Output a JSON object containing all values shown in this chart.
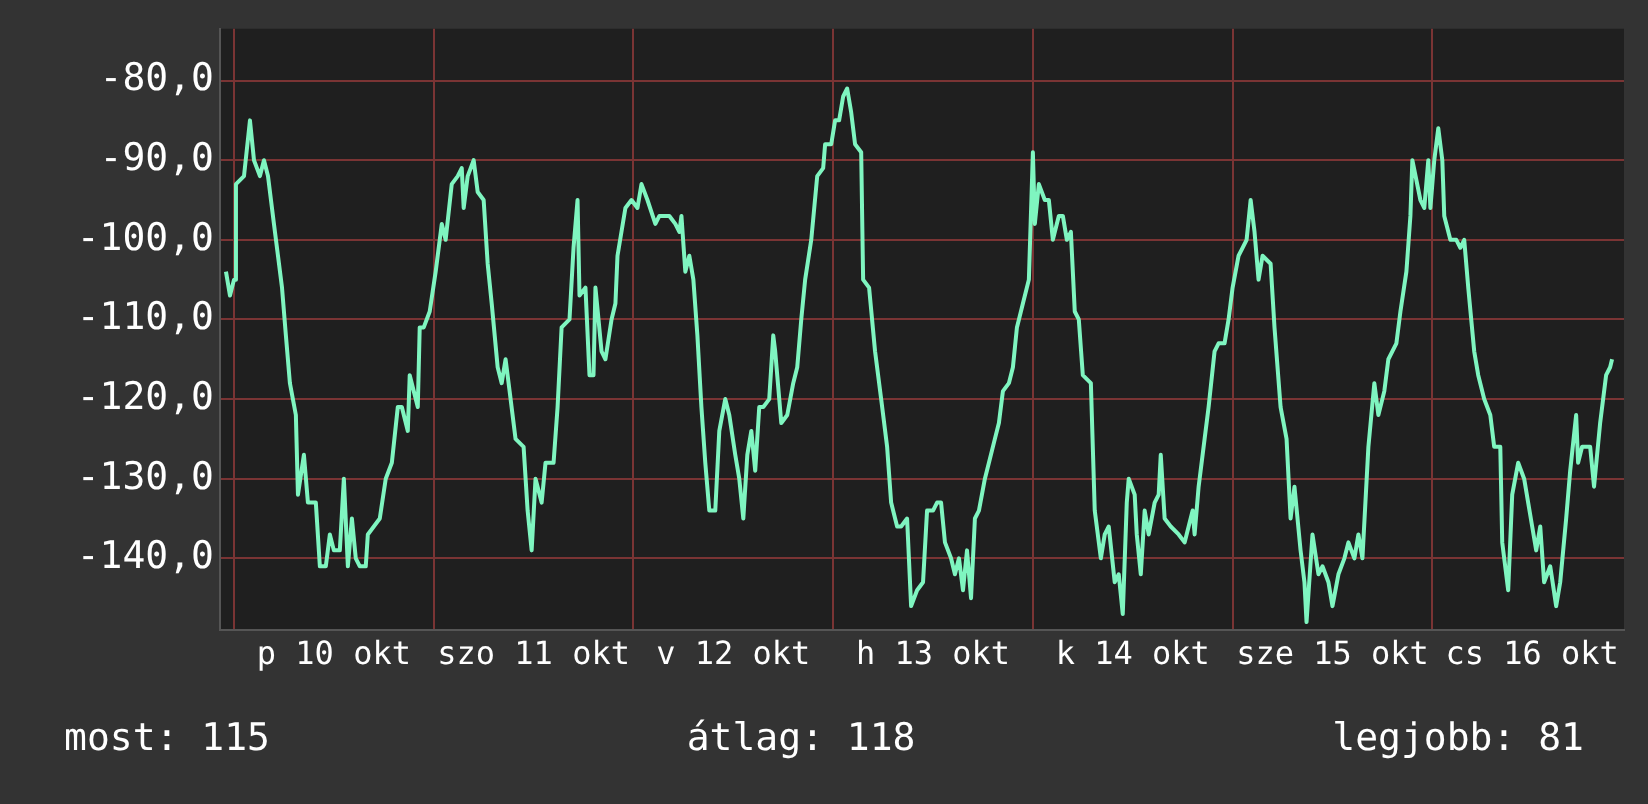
{
  "chart_data": {
    "type": "line",
    "x": [
      "--10-09T23:02",
      "--10-09T23:31",
      "--10-10T00:00",
      "--10-10T00:14",
      "--10-10T01:12",
      "--10-10T01:55",
      "--10-10T02:24",
      "--10-10T03:07",
      "--10-10T03:36",
      "--10-10T04:05",
      "--10-10T04:48",
      "--10-10T05:46",
      "--10-10T06:14",
      "--10-10T06:43",
      "--10-10T07:26",
      "--10-10T07:41",
      "--10-10T08:24",
      "--10-10T08:53",
      "--10-10T09:50",
      "--10-10T10:19",
      "--10-10T11:02",
      "--10-10T11:31",
      "--10-10T12:00",
      "--10-10T12:43",
      "--10-10T13:12",
      "--10-10T13:41",
      "--10-10T14:10",
      "--10-10T14:38",
      "--10-10T15:07",
      "--10-10T15:50",
      "--10-10T16:05",
      "--10-10T16:48",
      "--10-10T17:31",
      "--10-10T18:14",
      "--10-10T18:58",
      "--10-10T19:41",
      "--10-10T20:10",
      "--10-10T20:53",
      "--10-10T21:07",
      "--10-10T22:05",
      "--10-10T22:19",
      "--10-10T22:48",
      "--10-10T23:31",
      "--10-11T00:14",
      "--10-11T00:58",
      "--10-11T01:26",
      "--10-11T02:10",
      "--10-11T02:53",
      "--10-11T03:22",
      "--10-11T03:36",
      "--10-11T04:05",
      "--10-11T04:48",
      "--10-11T05:17",
      "--10-11T06:00",
      "--10-11T06:29",
      "--10-11T06:58",
      "--10-11T07:41",
      "--10-11T08:10",
      "--10-11T08:38",
      "--10-11T09:07",
      "--10-11T09:50",
      "--10-11T10:48",
      "--10-11T11:17",
      "--10-11T11:46",
      "--10-11T12:14",
      "--10-11T12:58",
      "--10-11T13:26",
      "--10-11T14:24",
      "--10-11T14:53",
      "--10-11T15:22",
      "--10-11T16:19",
      "--10-11T16:48",
      "--10-11T17:17",
      "--10-11T17:31",
      "--10-11T18:14",
      "--10-11T18:43",
      "--10-11T19:12",
      "--10-11T19:26",
      "--10-11T20:10",
      "--10-11T20:38",
      "--10-11T21:22",
      "--10-11T21:50",
      "--10-11T22:05",
      "--10-11T23:02",
      "--10-11T23:46",
      "--10-12T00:29",
      "--10-12T00:58",
      "--10-12T01:41",
      "--10-12T02:38",
      "--10-12T03:07",
      "--10-12T04:19",
      "--10-12T05:02",
      "--10-12T05:31",
      "--10-12T05:46",
      "--10-12T06:14",
      "--10-12T06:43",
      "--10-12T07:12",
      "--10-12T07:41",
      "--10-12T08:10",
      "--10-12T08:38",
      "--10-12T09:07",
      "--10-12T09:50",
      "--10-12T10:19",
      "--10-12T11:02",
      "--10-12T11:31",
      "--10-12T12:14",
      "--10-12T12:43",
      "--10-12T13:12",
      "--10-12T13:41",
      "--10-12T14:10",
      "--10-12T14:38",
      "--10-12T15:07",
      "--10-12T15:36",
      "--10-12T16:19",
      "--10-12T16:48",
      "--10-12T17:02",
      "--10-12T17:46",
      "--10-12T18:29",
      "--10-12T19:12",
      "--10-12T19:41",
      "--10-12T20:10",
      "--10-12T20:38",
      "--10-12T21:22",
      "--10-12T22:05",
      "--10-12T22:48",
      "--10-12T23:02",
      "--10-12T23:46",
      "--10-13T00:14",
      "--10-13T00:43",
      "--10-13T01:12",
      "--10-13T01:41",
      "--10-13T02:10",
      "--10-13T02:38",
      "--10-13T03:22",
      "--10-13T03:36",
      "--10-13T04:19",
      "--10-13T05:02",
      "--10-13T05:46",
      "--10-13T06:29",
      "--10-13T06:58",
      "--10-13T07:41",
      "--10-13T08:10",
      "--10-13T08:53",
      "--10-13T09:22",
      "--10-13T10:05",
      "--10-13T10:48",
      "--10-13T11:17",
      "--10-13T12:00",
      "--10-13T12:29",
      "--10-13T12:58",
      "--10-13T13:26",
      "--10-13T14:10",
      "--10-13T14:38",
      "--10-13T15:07",
      "--10-13T15:36",
      "--10-13T16:05",
      "--10-13T16:34",
      "--10-13T17:02",
      "--10-13T17:31",
      "--10-13T18:14",
      "--10-13T18:43",
      "--10-13T19:26",
      "--10-13T19:55",
      "--10-13T20:24",
      "--10-13T21:07",
      "--10-13T21:36",
      "--10-13T22:05",
      "--10-13T22:48",
      "--10-13T23:31",
      "--10-14T00:00",
      "--10-14T00:14",
      "--10-14T00:43",
      "--10-14T01:26",
      "--10-14T01:55",
      "--10-14T02:24",
      "--10-14T03:07",
      "--10-14T03:36",
      "--10-14T04:05",
      "--10-14T04:34",
      "--10-14T05:02",
      "--10-14T05:31",
      "--10-14T06:00",
      "--10-14T06:58",
      "--10-14T07:26",
      "--10-14T08:10",
      "--10-14T08:38",
      "--10-14T09:07",
      "--10-14T09:50",
      "--10-14T10:19",
      "--10-14T10:48",
      "--10-14T11:17",
      "--10-14T11:31",
      "--10-14T12:14",
      "--10-14T12:29",
      "--10-14T12:58",
      "--10-14T13:26",
      "--10-14T13:55",
      "--10-14T14:38",
      "--10-14T15:07",
      "--10-14T15:22",
      "--10-14T15:50",
      "--10-14T16:34",
      "--10-14T17:31",
      "--10-14T18:14",
      "--10-14T18:43",
      "--10-14T19:12",
      "--10-14T19:26",
      "--10-14T19:55",
      "--10-14T20:38",
      "--10-14T21:07",
      "--10-14T21:50",
      "--10-14T22:19",
      "--10-14T23:02",
      "--10-14T23:31",
      "--10-15T00:00",
      "--10-15T00:43",
      "--10-15T01:12",
      "--10-15T01:41",
      "--10-15T02:10",
      "--10-15T02:38",
      "--10-15T03:07",
      "--10-15T03:36",
      "--10-15T04:34",
      "--10-15T05:02",
      "--10-15T05:46",
      "--10-15T06:29",
      "--10-15T06:58",
      "--10-15T07:26",
      "--10-15T08:10",
      "--10-15T08:38",
      "--10-15T08:53",
      "--10-15T09:36",
      "--10-15T10:19",
      "--10-15T10:48",
      "--10-15T11:31",
      "--10-15T12:00",
      "--10-15T12:43",
      "--10-15T13:26",
      "--10-15T13:55",
      "--10-15T14:38",
      "--10-15T15:07",
      "--10-15T15:36",
      "--10-15T16:19",
      "--10-15T17:02",
      "--10-15T17:31",
      "--10-15T18:14",
      "--10-15T18:43",
      "--10-15T19:41",
      "--10-15T20:10",
      "--10-15T20:53",
      "--10-15T21:22",
      "--10-15T21:36",
      "--10-15T22:34",
      "--10-15T23:02",
      "--10-15T23:31",
      "--10-15T23:46",
      "--10-16T00:14",
      "--10-16T00:43",
      "--10-16T01:12",
      "--10-16T01:26",
      "--10-16T02:10",
      "--10-16T02:53",
      "--10-16T03:22",
      "--10-16T03:50",
      "--10-16T04:19",
      "--10-16T05:02",
      "--10-16T05:31",
      "--10-16T06:14",
      "--10-16T06:58",
      "--10-16T07:26",
      "--10-16T08:10",
      "--10-16T08:24",
      "--10-16T09:07",
      "--10-16T09:36",
      "--10-16T10:19",
      "--10-16T11:02",
      "--10-16T11:31",
      "--10-16T12:00",
      "--10-16T12:29",
      "--10-16T12:58",
      "--10-16T13:26",
      "--10-16T14:10",
      "--10-16T14:53",
      "--10-16T15:22",
      "--10-16T16:05",
      "--10-16T16:34",
      "--10-16T17:17",
      "--10-16T17:31",
      "--10-16T18:00",
      "--10-16T18:58",
      "--10-16T19:26",
      "--10-16T20:10",
      "--10-16T20:53",
      "--10-16T21:22",
      "--10-16T21:36"
    ],
    "values": [
      -104,
      -107,
      -105,
      -93,
      -92,
      -85,
      -90,
      -92,
      -90,
      -92,
      -98,
      -106,
      -112,
      -118,
      -122,
      -132,
      -127,
      -133,
      -133,
      -141,
      -141,
      -137,
      -139,
      -139,
      -130,
      -141,
      -135,
      -140,
      -141,
      -141,
      -137,
      -136,
      -135,
      -130,
      -128,
      -121,
      -121,
      -124,
      -117,
      -121,
      -111,
      -111,
      -109,
      -104,
      -98,
      -100,
      -93,
      -92,
      -91,
      -96,
      -92,
      -90,
      -94,
      -95,
      -103,
      -108,
      -116,
      -118,
      -115,
      -119,
      -125,
      -126,
      -134,
      -139,
      -130,
      -133,
      -128,
      -128,
      -121,
      -111,
      -110,
      -101,
      -95,
      -107,
      -106,
      -117,
      -117,
      -106,
      -114,
      -115,
      -110,
      -108,
      -102,
      -96,
      -95,
      -96,
      -93,
      -95,
      -98,
      -97,
      -97,
      -98,
      -99,
      -97,
      -104,
      -102,
      -105,
      -112,
      -121,
      -128,
      -134,
      -134,
      -124,
      -120,
      -122,
      -127,
      -130,
      -135,
      -127,
      -124,
      -129,
      -121,
      -121,
      -120,
      -112,
      -114,
      -123,
      -122,
      -118,
      -116,
      -110,
      -105,
      -100,
      -92,
      -91,
      -88,
      -88,
      -85,
      -85,
      -82,
      -81,
      -84,
      -88,
      -89,
      -105,
      -106,
      -114,
      -120,
      -126,
      -133,
      -136,
      -136,
      -135,
      -146,
      -144,
      -143,
      -134,
      -134,
      -133,
      -133,
      -138,
      -140,
      -142,
      -140,
      -144,
      -139,
      -145,
      -135,
      -134,
      -130,
      -128,
      -125,
      -123,
      -119,
      -118,
      -116,
      -111,
      -108,
      -105,
      -89,
      -98,
      -93,
      -95,
      -95,
      -100,
      -97,
      -97,
      -100,
      -99,
      -109,
      -110,
      -117,
      -118,
      -134,
      -140,
      -137,
      -136,
      -143,
      -142,
      -147,
      -133,
      -130,
      -132,
      -137,
      -142,
      -134,
      -137,
      -133,
      -132,
      -127,
      -135,
      -136,
      -137,
      -138,
      -136,
      -134,
      -137,
      -131,
      -125,
      -121,
      -114,
      -113,
      -113,
      -110,
      -106,
      -102,
      -101,
      -100,
      -95,
      -99,
      -105,
      -102,
      -103,
      -111,
      -121,
      -125,
      -135,
      -131,
      -139,
      -143,
      -148,
      -137,
      -142,
      -141,
      -143,
      -146,
      -142,
      -140,
      -138,
      -140,
      -137,
      -140,
      -126,
      -118,
      -122,
      -119,
      -115,
      -113,
      -109,
      -104,
      -97,
      -90,
      -95,
      -96,
      -90,
      -96,
      -90,
      -86,
      -90,
      -97,
      -100,
      -100,
      -101,
      -100,
      -106,
      -114,
      -117,
      -120,
      -122,
      -126,
      -126,
      -138,
      -144,
      -132,
      -128,
      -130,
      -133,
      -136,
      -139,
      -136,
      -143,
      -141,
      -146,
      -143,
      -135,
      -129,
      -122,
      -128,
      -126,
      -126,
      -131,
      -123,
      -117,
      -116,
      -115
    ],
    "color": "#7ff5c0",
    "xlim": [
      "--10-09T22:19",
      "--10-16T23:02"
    ],
    "xticks": [
      {
        "value": "--10-10T00:00",
        "label": null
      },
      {
        "value": "--10-10T12:00",
        "label": "p 10 okt"
      },
      {
        "value": "--10-11T00:00",
        "label": null
      },
      {
        "value": "--10-11T12:00",
        "label": "szo 11 okt"
      },
      {
        "value": "--10-12T00:00",
        "label": null
      },
      {
        "value": "--10-12T12:00",
        "label": "v 12 okt"
      },
      {
        "value": "--10-13T00:00",
        "label": null
      },
      {
        "value": "--10-13T12:00",
        "label": "h 13 okt"
      },
      {
        "value": "--10-14T00:00",
        "label": null
      },
      {
        "value": "--10-14T12:00",
        "label": "k 14 okt"
      },
      {
        "value": "--10-15T00:00",
        "label": null
      },
      {
        "value": "--10-15T12:00",
        "label": "sze 15 okt"
      },
      {
        "value": "--10-16T00:00",
        "label": null
      },
      {
        "value": "--10-16T12:00",
        "label": "cs 16 okt"
      }
    ],
    "ylim": [
      -149,
      -73.5
    ],
    "yticks": [
      {
        "value": -140,
        "label": "-140,0"
      },
      {
        "value": -130,
        "label": "-130,0"
      },
      {
        "value": -120,
        "label": "-120,0"
      },
      {
        "value": -110,
        "label": "-110,0"
      },
      {
        "value": -100,
        "label": "-100,0"
      },
      {
        "value": -90,
        "label": "-90,0"
      },
      {
        "value": -80,
        "label": "-80,0"
      }
    ],
    "grid": true,
    "legend": false,
    "marker": "none",
    "line_style": "solid",
    "annotations": [
      "most: 115",
      "átlag: 118",
      "legjobb: 81"
    ]
  }
}
